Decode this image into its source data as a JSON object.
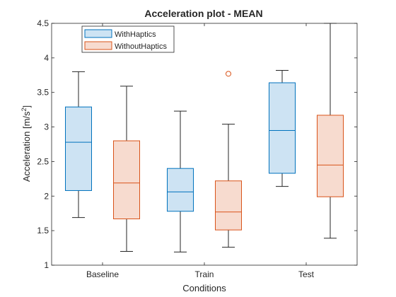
{
  "chart_data": {
    "type": "box",
    "title": "Acceleration plot - MEAN",
    "xlabel": "Conditions",
    "ylabel_main": "Acceleration [m/s",
    "ylabel_sup": "2",
    "ylabel_end": "]",
    "categories": [
      "Baseline",
      "Train",
      "Test"
    ],
    "ylim": [
      1,
      4.5
    ],
    "yticks": [
      1,
      1.5,
      2,
      2.5,
      3,
      3.5,
      4,
      4.5
    ],
    "ytick_labels": [
      "1",
      "1.5",
      "2",
      "2.5",
      "3",
      "3.5",
      "4",
      "4.5"
    ],
    "grid": false,
    "legend_position": "top-left",
    "series": [
      {
        "name": "WithHaptics",
        "edge_color": "#0072BD",
        "fill_color": "#CDE3F3",
        "boxes": [
          {
            "min": 1.69,
            "q1": 2.08,
            "median": 2.78,
            "q3": 3.29,
            "max": 3.8,
            "outliers": []
          },
          {
            "min": 1.19,
            "q1": 1.78,
            "median": 2.06,
            "q3": 2.4,
            "max": 3.23,
            "outliers": []
          },
          {
            "min": 2.14,
            "q1": 2.33,
            "median": 2.95,
            "q3": 3.64,
            "max": 3.82,
            "outliers": []
          }
        ]
      },
      {
        "name": "WithoutHaptics",
        "edge_color": "#D95319",
        "fill_color": "#F7DBCF",
        "boxes": [
          {
            "min": 1.2,
            "q1": 1.67,
            "median": 2.19,
            "q3": 2.8,
            "max": 3.59,
            "outliers": []
          },
          {
            "min": 1.26,
            "q1": 1.51,
            "median": 1.77,
            "q3": 2.22,
            "max": 3.04,
            "outliers": [
              3.77
            ]
          },
          {
            "min": 1.39,
            "q1": 1.99,
            "median": 2.45,
            "q3": 3.17,
            "max": 4.5,
            "outliers": []
          }
        ]
      }
    ]
  }
}
